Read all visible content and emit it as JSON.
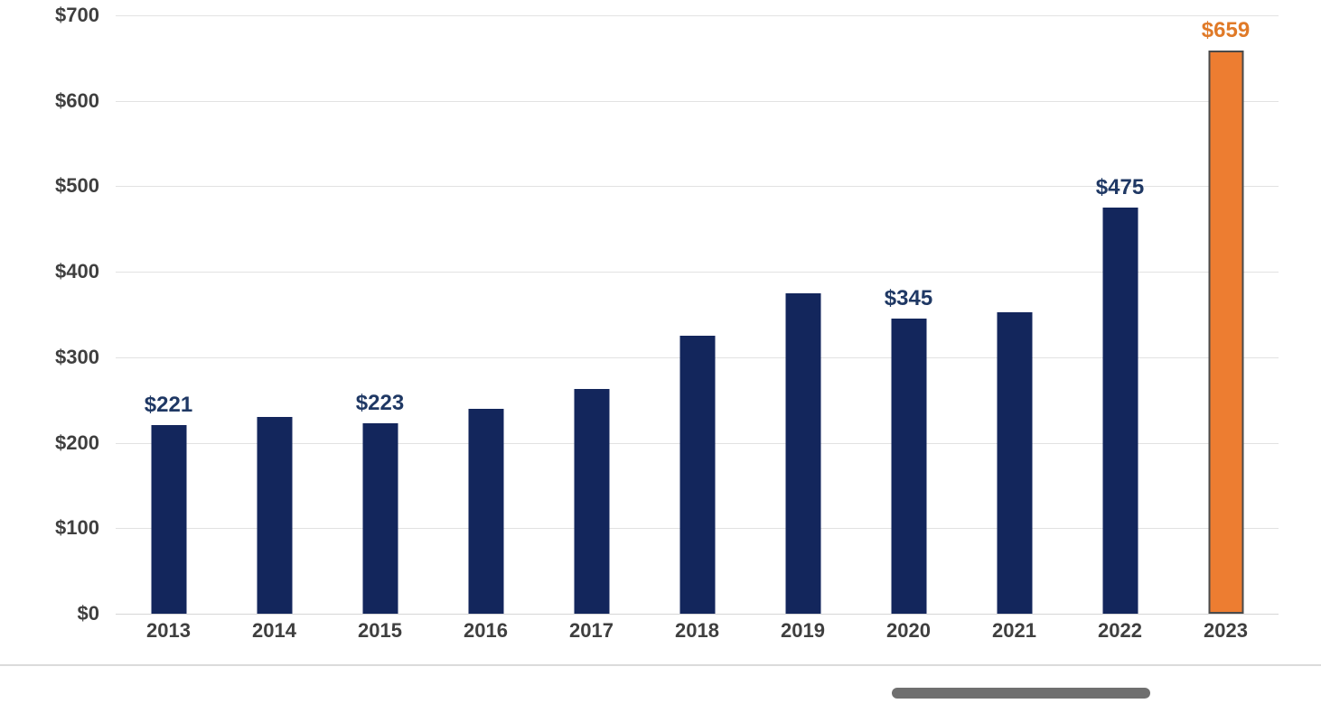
{
  "chart_data": {
    "type": "bar",
    "title": "",
    "xlabel": "",
    "ylabel": "",
    "categories": [
      "2013",
      "2014",
      "2015",
      "2016",
      "2017",
      "2018",
      "2019",
      "2020",
      "2021",
      "2022",
      "2023"
    ],
    "values": [
      221,
      230,
      223,
      240,
      263,
      325,
      375,
      345,
      353,
      475,
      659
    ],
    "data_labels": [
      "$221",
      null,
      "$223",
      null,
      null,
      null,
      null,
      "$345",
      null,
      "$475",
      "$659"
    ],
    "ylim": [
      0,
      700
    ],
    "ytick_step": 100,
    "ytick_labels": [
      "$0",
      "$100",
      "$200",
      "$300",
      "$400",
      "$500",
      "$600",
      "$700"
    ],
    "grid": true,
    "legend": false,
    "highlight_index": 10,
    "colors": {
      "bar": "#13265c",
      "highlight_bar": "#ed7d31",
      "highlight_border": "#4a4a4a",
      "data_label": "#1f3864",
      "highlight_data_label": "#e07a28",
      "axis_text": "#3f3f3f",
      "gridline": "#e2e2e2",
      "scrollbar": "#6f6f6f"
    }
  },
  "footer": {
    "scrollbar_name": "horizontal scrollbar thumb"
  }
}
